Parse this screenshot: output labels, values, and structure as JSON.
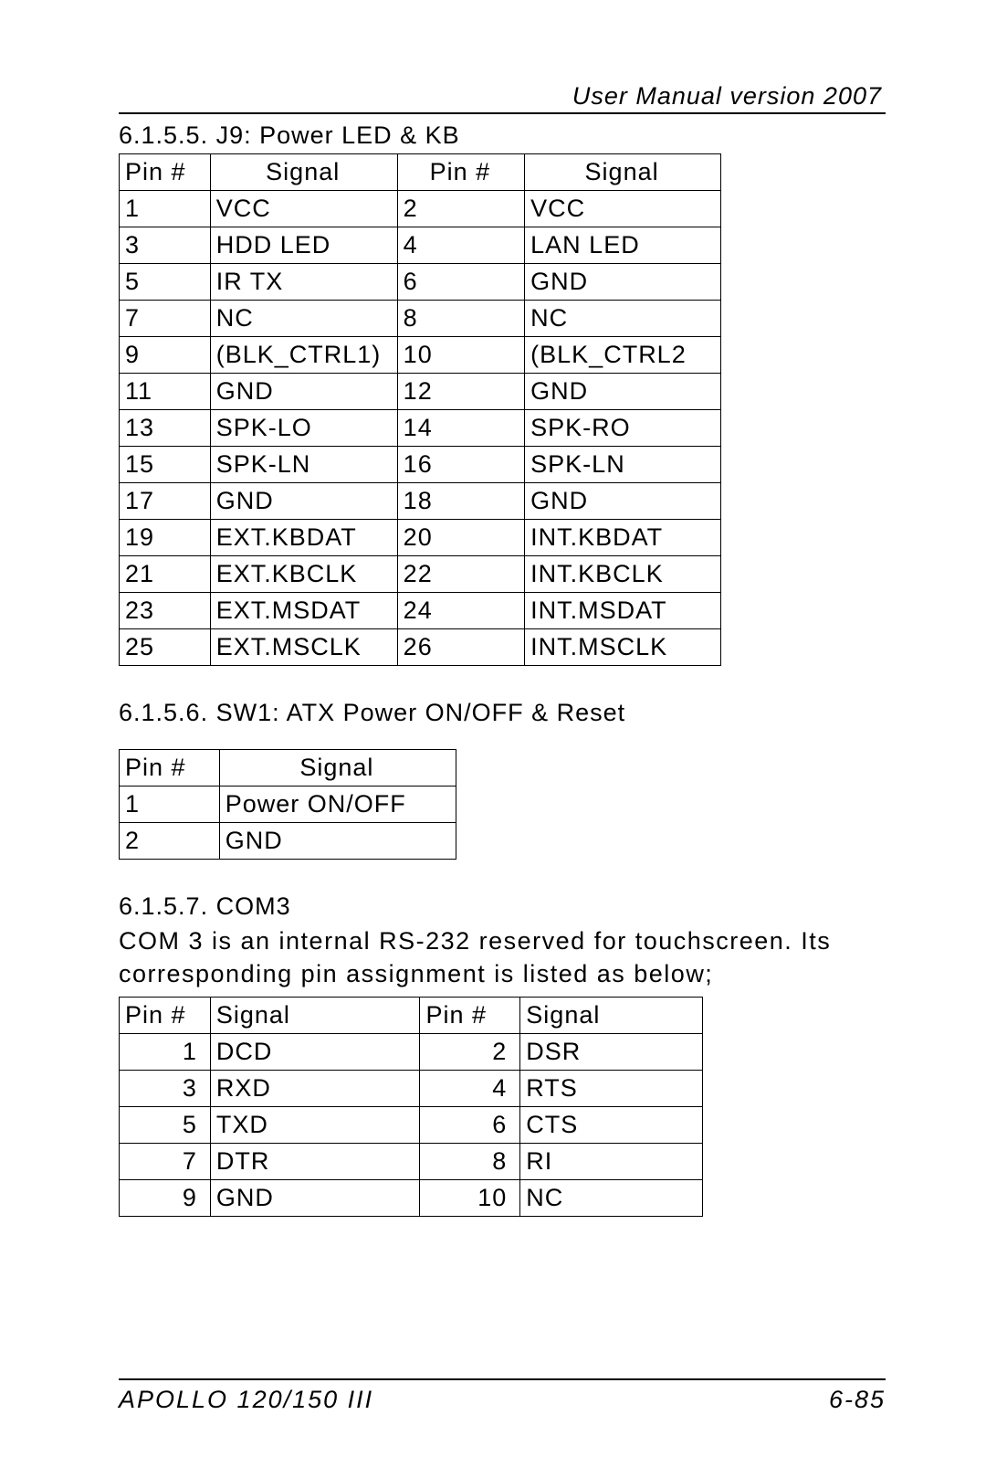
{
  "header": {
    "text": "User Manual version 2007"
  },
  "s1": {
    "heading": "6.1.5.5.  J9: Power LED & KB",
    "cols": {
      "c1": "Pin #",
      "c2": "Signal",
      "c3": "Pin #",
      "c4": "Signal"
    },
    "rows": [
      {
        "p1": "1",
        "s1": "VCC",
        "p2": "2",
        "s2": "VCC"
      },
      {
        "p1": "3",
        "s1": "HDD LED",
        "p2": "4",
        "s2": "LAN LED"
      },
      {
        "p1": "5",
        "s1": "IR TX",
        "p2": "6",
        "s2": "GND"
      },
      {
        "p1": "7",
        "s1": "NC",
        "p2": "8",
        "s2": "NC"
      },
      {
        "p1": "9",
        "s1": "(BLK_CTRL1)",
        "p2": "10",
        "s2": "(BLK_CTRL2"
      },
      {
        "p1": "11",
        "s1": "GND",
        "p2": "12",
        "s2": "GND"
      },
      {
        "p1": "13",
        "s1": "SPK-LO",
        "p2": "14",
        "s2": "SPK-RO"
      },
      {
        "p1": "15",
        "s1": "SPK-LN",
        "p2": "16",
        "s2": "SPK-LN"
      },
      {
        "p1": "17",
        "s1": "GND",
        "p2": "18",
        "s2": "GND"
      },
      {
        "p1": "19",
        "s1": "EXT.KBDAT",
        "p2": "20",
        "s2": "INT.KBDAT"
      },
      {
        "p1": "21",
        "s1": "EXT.KBCLK",
        "p2": "22",
        "s2": "INT.KBCLK"
      },
      {
        "p1": "23",
        "s1": "EXT.MSDAT",
        "p2": "24",
        "s2": "INT.MSDAT"
      },
      {
        "p1": "25",
        "s1": "EXT.MSCLK",
        "p2": "26",
        "s2": "INT.MSCLK"
      }
    ]
  },
  "s2": {
    "heading": "6.1.5.6.  SW1: ATX Power ON/OFF & Reset",
    "cols": {
      "c1": "Pin #",
      "c2": "Signal"
    },
    "rows": [
      {
        "p1": "1",
        "s1": "Power ON/OFF"
      },
      {
        "p1": "2",
        "s1": "GND"
      }
    ]
  },
  "s3": {
    "heading": "6.1.5.7.  COM3",
    "body": "COM 3 is an internal RS-232 reserved for touchscreen. Its corresponding pin assignment is listed as below;",
    "cols": {
      "c1": "Pin #",
      "c2": "Signal",
      "c3": "Pin #",
      "c4": "Signal"
    },
    "rows": [
      {
        "p1": "1",
        "s1": "DCD",
        "p2": "2",
        "s2": "DSR"
      },
      {
        "p1": "3",
        "s1": "RXD",
        "p2": "4",
        "s2": "RTS"
      },
      {
        "p1": "5",
        "s1": "TXD",
        "p2": "6",
        "s2": "CTS"
      },
      {
        "p1": "7",
        "s1": "DTR",
        "p2": "8",
        "s2": "RI"
      },
      {
        "p1": "9",
        "s1": "GND",
        "p2": "10",
        "s2": "NC"
      }
    ]
  },
  "footer": {
    "left": "APOLLO 120/150 III",
    "right": "6-85"
  }
}
